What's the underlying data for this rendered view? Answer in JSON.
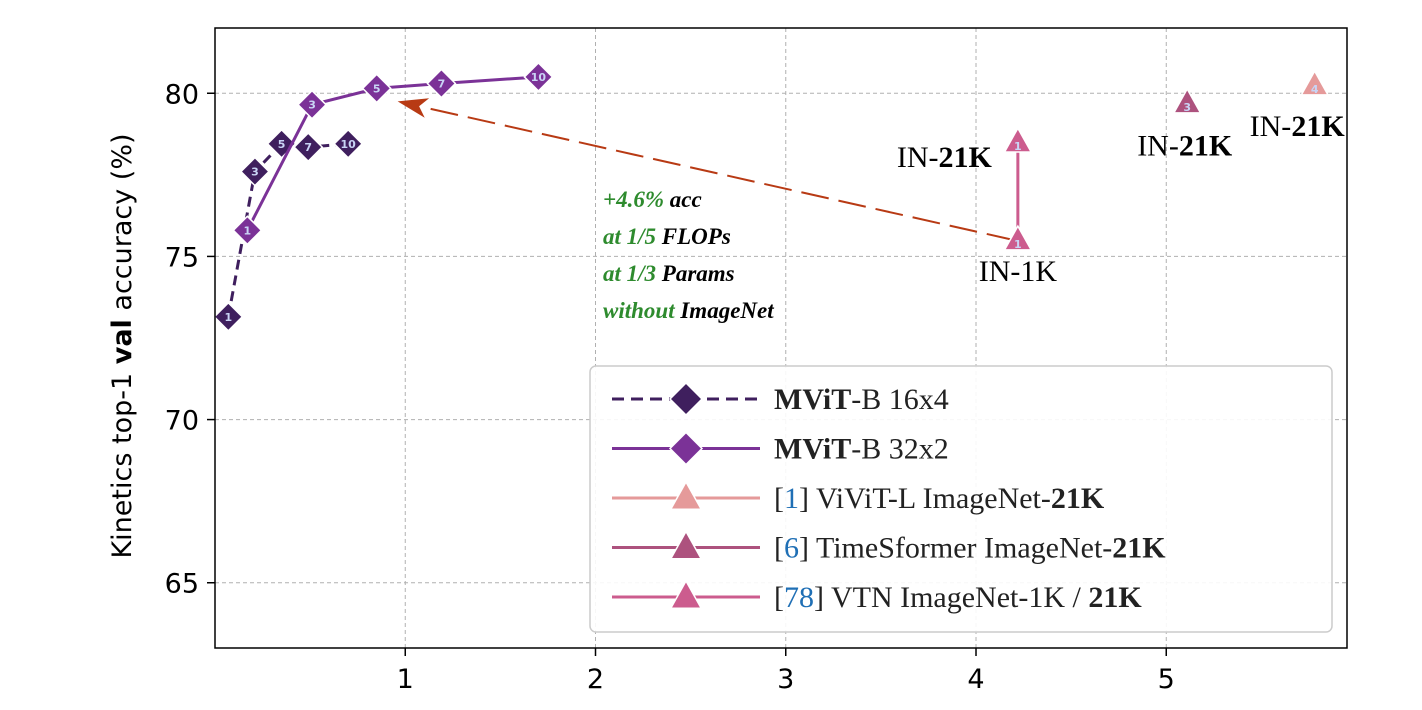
{
  "chart_data": {
    "type": "line",
    "title": "",
    "ylabel_parts": [
      "Kinetics top-1 ",
      "val",
      " accuracy (%)"
    ],
    "xlabel": "",
    "xlim": [
      0,
      5.95
    ],
    "ylim": [
      63,
      82
    ],
    "xticks": [
      1,
      2,
      3,
      4,
      5
    ],
    "yticks": [
      65,
      70,
      75,
      80
    ],
    "grid": true,
    "legend_position": "lower-right",
    "colors": {
      "mvit16": "#3f1f5e",
      "mvit32": "#7b3297",
      "vivit": "#e59a9a",
      "timesformer": "#ad527e",
      "vtn": "#cc5c8e",
      "arrow": "#b83a14",
      "green": "#2e8b2e",
      "cite": "#1f6fb5"
    },
    "series": [
      {
        "id": "mvit16",
        "marker": "diamond",
        "linestyle": "dashed",
        "legend_parts": [
          {
            "t": "MViT",
            "b": true
          },
          {
            "t": "-B 16x4"
          }
        ],
        "points": [
          {
            "x": 0.07,
            "y": 73.15,
            "label": "1"
          },
          {
            "x": 0.21,
            "y": 77.6,
            "label": "3"
          },
          {
            "x": 0.35,
            "y": 78.45,
            "label": "5"
          },
          {
            "x": 0.49,
            "y": 78.35,
            "label": "7"
          },
          {
            "x": 0.7,
            "y": 78.45,
            "label": "10"
          }
        ]
      },
      {
        "id": "mvit32",
        "marker": "diamond",
        "linestyle": "solid",
        "legend_parts": [
          {
            "t": "MViT",
            "b": true
          },
          {
            "t": "-B 32x2"
          }
        ],
        "points": [
          {
            "x": 0.17,
            "y": 75.8,
            "label": "1"
          },
          {
            "x": 0.51,
            "y": 79.65,
            "label": "3"
          },
          {
            "x": 0.85,
            "y": 80.15,
            "label": "5"
          },
          {
            "x": 1.19,
            "y": 80.3,
            "label": "7"
          },
          {
            "x": 1.7,
            "y": 80.5,
            "label": "10"
          }
        ]
      },
      {
        "id": "vivit",
        "marker": "triangle",
        "linestyle": "solid",
        "legend_parts": [
          {
            "t": "["
          },
          {
            "t": "1",
            "cite": true
          },
          {
            "t": "] ViViT-L ImageNet-"
          },
          {
            "t": "21K",
            "b": true
          }
        ],
        "points": [
          {
            "x": 5.78,
            "y": 80.25,
            "label": "4"
          }
        ]
      },
      {
        "id": "timesformer",
        "marker": "triangle",
        "linestyle": "solid",
        "legend_parts": [
          {
            "t": "["
          },
          {
            "t": "6",
            "cite": true
          },
          {
            "t": "] TimeSformer ImageNet-"
          },
          {
            "t": "21K",
            "b": true
          }
        ],
        "points": [
          {
            "x": 5.11,
            "y": 79.7,
            "label": "3"
          }
        ]
      },
      {
        "id": "vtn",
        "marker": "triangle",
        "linestyle": "solid",
        "legend_parts": [
          {
            "t": "["
          },
          {
            "t": "78",
            "cite": true
          },
          {
            "t": "] VTN ImageNet-1K / "
          },
          {
            "t": "21K",
            "b": true
          }
        ],
        "points": [
          {
            "x": 4.22,
            "y": 75.5,
            "label": "1"
          },
          {
            "x": 4.22,
            "y": 78.5,
            "label": "1"
          }
        ]
      }
    ],
    "arrow": {
      "from": {
        "x": 4.2,
        "y": 75.5
      },
      "to": {
        "x": 0.96,
        "y": 79.75
      }
    },
    "point_annotations": [
      {
        "x": 4.22,
        "y": 78.05,
        "anchor": "end",
        "dx": -26,
        "parts": [
          {
            "t": "IN-"
          },
          {
            "t": "21K",
            "b": true
          }
        ]
      },
      {
        "x": 4.22,
        "y": 74.55,
        "anchor": "middle",
        "dx": 0,
        "parts": [
          {
            "t": "IN-1K"
          }
        ]
      },
      {
        "x": 5.11,
        "y": 78.4,
        "anchor": "end",
        "dx": 45,
        "parts": [
          {
            "t": "IN-"
          },
          {
            "t": "21K",
            "b": true
          }
        ]
      },
      {
        "x": 5.78,
        "y": 79.0,
        "anchor": "end",
        "dx": 30,
        "parts": [
          {
            "t": "IN-"
          },
          {
            "t": "21K",
            "b": true
          }
        ]
      }
    ],
    "callout": [
      [
        {
          "t": "+4.6%",
          "g": true
        },
        {
          "t": " acc"
        }
      ],
      [
        {
          "t": "at 1/5",
          "g": true
        },
        {
          "t": " FLOPs"
        }
      ],
      [
        {
          "t": "at 1/3",
          "g": true
        },
        {
          "t": " Params"
        }
      ],
      [
        {
          "t": "without",
          "g": true
        },
        {
          "t": " ImageNet"
        }
      ]
    ]
  }
}
